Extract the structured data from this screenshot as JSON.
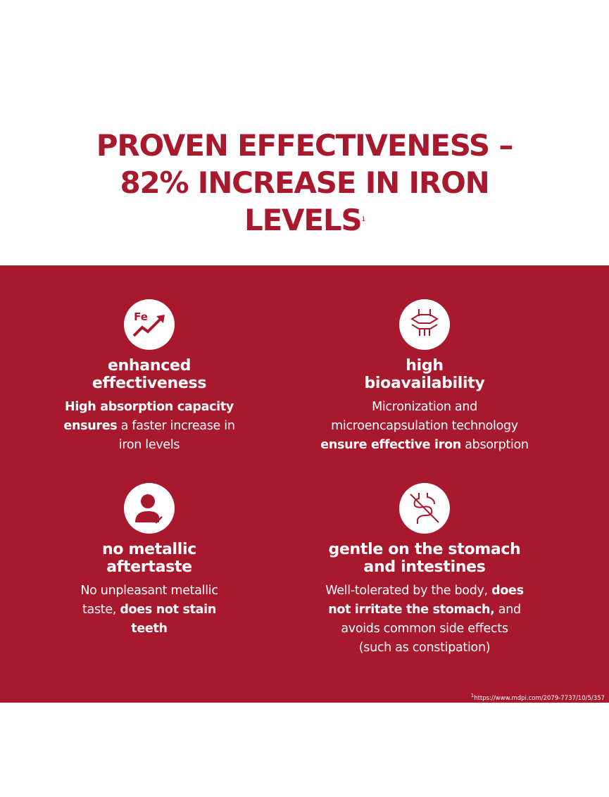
{
  "header": {
    "title_lines": [
      "PROVEN EFFECTIVENESS –",
      "82% INCREASE IN IRON",
      "LEVELS"
    ],
    "title_sup": "1"
  },
  "features": [
    {
      "icon_label": "Fe",
      "title_lines": [
        "enhanced",
        "effectiveness"
      ],
      "description_lines": [
        [
          {
            "text": "High absorption capacity",
            "bold": true
          }
        ],
        [
          {
            "text": "ensures",
            "bold": true
          },
          {
            "text": " a faster increase in",
            "bold": false
          }
        ],
        [
          {
            "text": "iron levels",
            "bold": false
          }
        ]
      ]
    },
    {
      "title_lines": [
        "high",
        "bioavailability"
      ],
      "description_lines": [
        [
          {
            "text": "Micronization and",
            "bold": false
          }
        ],
        [
          {
            "text": "microencapsulation technology",
            "bold": false
          }
        ],
        [
          {
            "text": "ensure effective iron",
            "bold": true
          },
          {
            "text": " absorption",
            "bold": false
          }
        ]
      ]
    },
    {
      "title_lines": [
        "no metallic",
        "aftertaste"
      ],
      "description_lines": [
        [
          {
            "text": "No unpleasant metallic",
            "bold": false
          }
        ],
        [
          {
            "text": "taste, ",
            "bold": false
          },
          {
            "text": "does not stain",
            "bold": true
          }
        ],
        [
          {
            "text": "teeth",
            "bold": true
          }
        ]
      ]
    },
    {
      "title_lines": [
        "gentle on the stomach",
        "and intestines"
      ],
      "description_lines": [
        [
          {
            "text": "Well-tolerated by the body, ",
            "bold": false
          },
          {
            "text": "does",
            "bold": true
          }
        ],
        [
          {
            "text": "not irritate the stomach,",
            "bold": true
          },
          {
            "text": " and",
            "bold": false
          }
        ],
        [
          {
            "text": "avoids common side effects",
            "bold": false
          }
        ],
        [
          {
            "text": "(such as constipation)",
            "bold": false
          }
        ]
      ]
    }
  ],
  "footnote": {
    "sup": "1",
    "text": "https://www.mdpi.com/2079-7737/10/5/357"
  }
}
